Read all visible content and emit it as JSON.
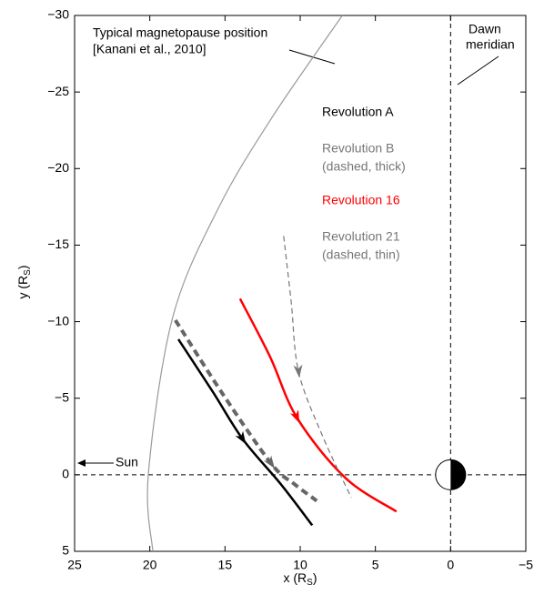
{
  "chart_data": {
    "type": "line",
    "xlabel": [
      "x (R",
      "S",
      ")"
    ],
    "ylabel": [
      "y (R",
      "S",
      ")"
    ],
    "xlim": [
      25,
      -5
    ],
    "ylim": [
      -30,
      5
    ],
    "xticks": [
      25,
      20,
      15,
      10,
      5,
      0,
      {
        "value": -5,
        "label": "−5"
      }
    ],
    "yticks": [
      {
        "value": -30,
        "label": "−30"
      },
      {
        "value": -25,
        "label": "−25"
      },
      {
        "value": -20,
        "label": "−20"
      },
      {
        "value": -15,
        "label": "−15"
      },
      {
        "value": -10,
        "label": "−10"
      },
      {
        "value": -5,
        "label": "−5"
      },
      0,
      5
    ],
    "grid": false,
    "series": [
      {
        "name": "Typical magnetopause position",
        "note": "[Kanani et al., 2010]",
        "color": "#999999",
        "x": [
          19.8,
          20.1,
          18.5,
          15.5,
          11.9,
          7.2
        ],
        "values": [
          5,
          0,
          -10.2,
          -17.3,
          -23.3,
          -30
        ]
      },
      {
        "name": "Revolution A",
        "color": "#000000",
        "x": [
          18.1,
          15.8,
          13.8,
          11.3,
          9.2
        ],
        "values": [
          -8.85,
          -5.4,
          -2.3,
          0.6,
          3.3
        ]
      },
      {
        "name": "Revolution B",
        "note": "(dashed, thick)",
        "color": "#666666",
        "dashed": true,
        "x": [
          18.3,
          15.1,
          11.9,
          10.4,
          8.9
        ],
        "values": [
          -10.1,
          -5.2,
          -0.7,
          0.6,
          1.7
        ]
      },
      {
        "name": "Revolution 16",
        "color": "#ff0000",
        "x": [
          14.0,
          12.0,
          10.2,
          7.0,
          3.6
        ],
        "values": [
          -11.5,
          -7.7,
          -3.7,
          0.2,
          2.4
        ]
      },
      {
        "name": "Revolution 21",
        "note": "(dashed, thin)",
        "color": "#777777",
        "dashed": true,
        "thin": true,
        "x": [
          11.1,
          10.6,
          10.1,
          8.5,
          6.6
        ],
        "values": [
          -15.6,
          -11.3,
          -6.7,
          -2.5,
          1.5
        ]
      }
    ],
    "annotations": {
      "dawn": [
        "Dawn",
        "meridian"
      ],
      "sun": "Sun"
    }
  }
}
